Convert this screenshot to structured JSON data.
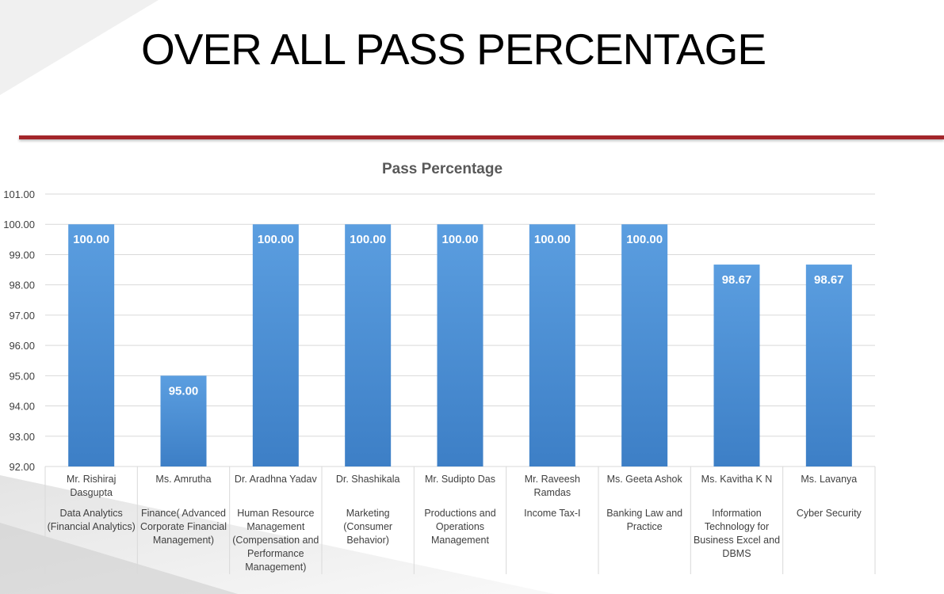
{
  "slide": {
    "title": "OVER ALL PASS PERCENTAGE"
  },
  "colors": {
    "bar": "#4a8dd3",
    "rule": "#a3262a"
  },
  "chart_data": {
    "type": "bar",
    "title": "Pass Percentage",
    "xlabel": "",
    "ylabel": "",
    "ylim": [
      92,
      101
    ],
    "yticks": [
      "92.00",
      "93.00",
      "94.00",
      "95.00",
      "96.00",
      "97.00",
      "98.00",
      "99.00",
      "100.00",
      "101.00"
    ],
    "grid": true,
    "categories": [
      {
        "name": "Mr. Rishiraj Dasgupta",
        "subject": "Data Analytics (Financial Analytics)"
      },
      {
        "name": "Ms. Amrutha",
        "subject": "Finance( Advanced Corporate Financial Management)"
      },
      {
        "name": "Dr. Aradhna Yadav",
        "subject": "Human Resource Management (Compensation and Performance Management)"
      },
      {
        "name": "Dr. Shashikala",
        "subject": "Marketing (Consumer Behavior)"
      },
      {
        "name": "Mr. Sudipto Das",
        "subject": "Productions and Operations Management"
      },
      {
        "name": "Mr. Raveesh Ramdas",
        "subject": "Income Tax-I"
      },
      {
        "name": "Ms. Geeta Ashok",
        "subject": "Banking Law and Practice"
      },
      {
        "name": "Ms. Kavitha K N",
        "subject": "Information Technology for Business  Excel and DBMS"
      },
      {
        "name": "Ms. Lavanya",
        "subject": "Cyber Security"
      }
    ],
    "values": [
      100.0,
      95.0,
      100.0,
      100.0,
      100.0,
      100.0,
      100.0,
      98.67,
      98.67
    ],
    "data_labels": [
      "100.00",
      "95.00",
      "100.00",
      "100.00",
      "100.00",
      "100.00",
      "100.00",
      "98.67",
      "98.67"
    ]
  }
}
